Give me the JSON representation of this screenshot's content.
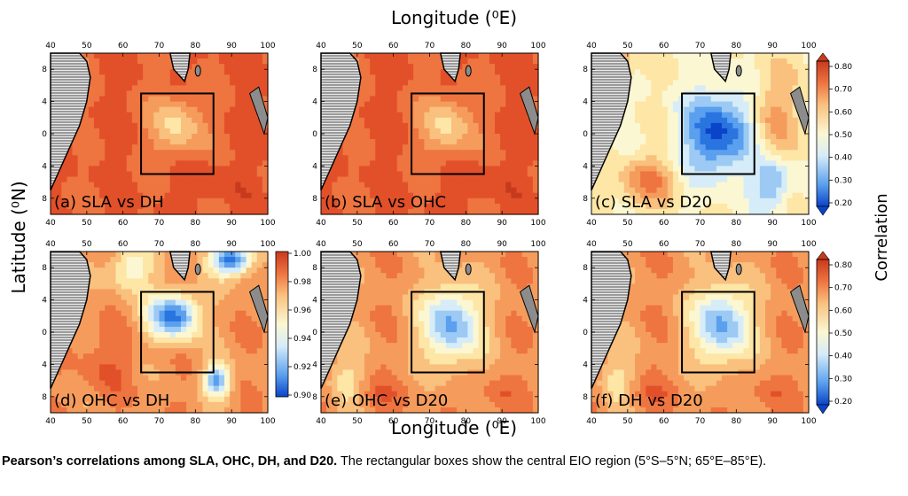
{
  "figure": {
    "x_axis_title": "Longitude (⁰E)",
    "y_axis_title": "Latitude (⁰N)",
    "lon_ticks": [
      "40",
      "50",
      "60",
      "70",
      "80",
      "90",
      "100"
    ],
    "lat_ticks": [
      "8",
      "4",
      "0",
      "4",
      "8"
    ],
    "panels": [
      {
        "id": "a",
        "label": "(a) SLA vs DH",
        "pattern": "high"
      },
      {
        "id": "b",
        "label": "(b) SLA vs OHC",
        "pattern": "high"
      },
      {
        "id": "c",
        "label": "(c) SLA vs D20",
        "pattern": "low"
      },
      {
        "id": "d",
        "label": "(d) OHC vs DH",
        "pattern": "mid"
      },
      {
        "id": "e",
        "label": "(e) OHC vs D20",
        "pattern": "med"
      },
      {
        "id": "f",
        "label": "(f) DH vs D20",
        "pattern": "med"
      }
    ],
    "colorbar_corr": {
      "title": "Correlation",
      "ticks": [
        "0.80",
        "0.70",
        "0.60",
        "0.50",
        "0.40",
        "0.30",
        "0.20"
      ]
    },
    "colorbar_ohc_dh": {
      "ticks": [
        "1.00",
        "0.98",
        "0.96",
        "0.94",
        "0.92",
        "0.90"
      ]
    },
    "colors": {
      "scale": [
        "#0a44c8",
        "#2a74e0",
        "#5aa0ee",
        "#9ccaf4",
        "#d6ecf8",
        "#fbf7d2",
        "#fde6a6",
        "#f9c07e",
        "#f59c5c",
        "#ee7440",
        "#e2502a",
        "#c83a1e"
      ],
      "land": "#8c8c8c"
    }
  },
  "caption": {
    "bold": "Pearson’s correlations among SLA, OHC, DH, and D20.",
    "rest": " The rectangular boxes show the central EIO region (5°S–5°N; 65°E–85°E)."
  }
}
